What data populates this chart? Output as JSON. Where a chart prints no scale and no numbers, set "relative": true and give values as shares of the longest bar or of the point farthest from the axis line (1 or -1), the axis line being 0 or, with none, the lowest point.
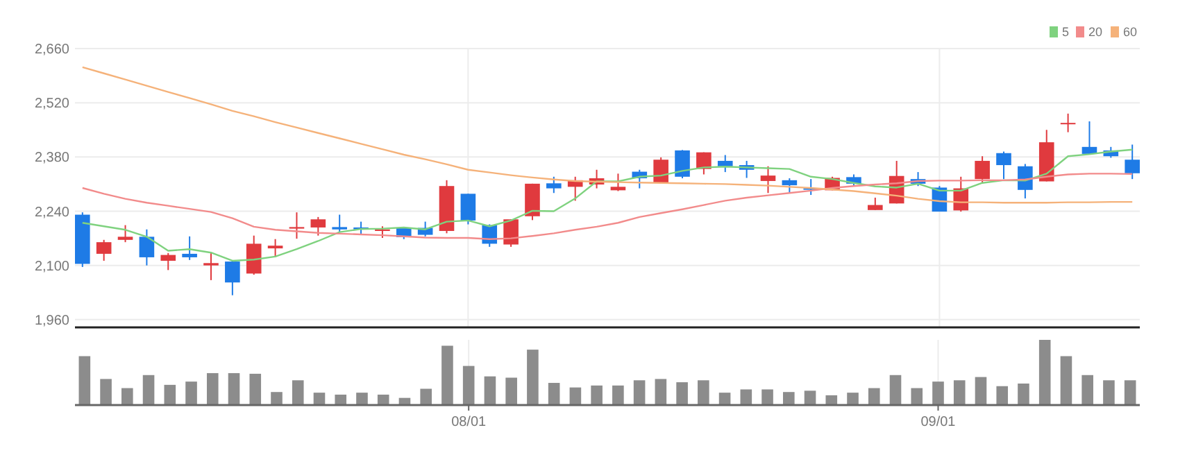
{
  "chart_data": [
    {
      "type": "candlestick",
      "categories": [
        null,
        null,
        null,
        null,
        null,
        null,
        null,
        null,
        null,
        null,
        null,
        null,
        null,
        null,
        null,
        null,
        null,
        null,
        null,
        null,
        null,
        null,
        null,
        null,
        null,
        null,
        null,
        null,
        null,
        null,
        null,
        null,
        null,
        null,
        null,
        null,
        null,
        null,
        null,
        null,
        null,
        null,
        null,
        null,
        null,
        null,
        null,
        null,
        null,
        null
      ],
      "ohlc": [
        [
          2231,
          2237,
          2096,
          2104
        ],
        [
          2130,
          2166,
          2112,
          2160
        ],
        [
          2166,
          2204,
          2160,
          2174
        ],
        [
          2174,
          2193,
          2100,
          2121
        ],
        [
          2112,
          2132,
          2088,
          2127
        ],
        [
          2130,
          2175,
          2114,
          2121
        ],
        [
          2100,
          2132,
          2062,
          2106
        ],
        [
          2110,
          2112,
          2023,
          2056
        ],
        [
          2079,
          2177,
          2076,
          2156
        ],
        [
          2144,
          2168,
          2121,
          2151
        ],
        [
          2195,
          2237,
          2169,
          2199
        ],
        [
          2198,
          2225,
          2177,
          2219
        ],
        [
          2199,
          2231,
          2187,
          2193
        ],
        [
          2198,
          2213,
          2180,
          2193
        ],
        [
          2189,
          2201,
          2171,
          2193
        ],
        [
          2197,
          2197,
          2168,
          2173
        ],
        [
          2197,
          2213,
          2175,
          2179
        ],
        [
          2189,
          2320,
          2183,
          2305
        ],
        [
          2285,
          2285,
          2206,
          2216
        ],
        [
          2204,
          2206,
          2148,
          2156
        ],
        [
          2154,
          2219,
          2148,
          2219
        ],
        [
          2227,
          2311,
          2217,
          2311
        ],
        [
          2312,
          2329,
          2287,
          2299
        ],
        [
          2303,
          2329,
          2267,
          2320
        ],
        [
          2309,
          2347,
          2299,
          2325
        ],
        [
          2294,
          2337,
          2292,
          2303
        ],
        [
          2342,
          2347,
          2299,
          2325
        ],
        [
          2314,
          2379,
          2314,
          2373
        ],
        [
          2397,
          2398,
          2325,
          2329
        ],
        [
          2349,
          2392,
          2335,
          2392
        ],
        [
          2370,
          2385,
          2341,
          2356
        ],
        [
          2359,
          2370,
          2326,
          2347
        ],
        [
          2318,
          2356,
          2287,
          2332
        ],
        [
          2320,
          2325,
          2289,
          2307
        ],
        [
          2299,
          2323,
          2282,
          2297
        ],
        [
          2294,
          2329,
          2294,
          2326
        ],
        [
          2328,
          2335,
          2304,
          2311
        ],
        [
          2243,
          2275,
          2243,
          2256
        ],
        [
          2260,
          2370,
          2260,
          2331
        ],
        [
          2323,
          2341,
          2305,
          2311
        ],
        [
          2301,
          2305,
          2239,
          2239
        ],
        [
          2242,
          2329,
          2239,
          2299
        ],
        [
          2323,
          2382,
          2311,
          2370
        ],
        [
          2390,
          2394,
          2323,
          2359
        ],
        [
          2356,
          2362,
          2273,
          2295
        ],
        [
          2317,
          2450,
          2317,
          2418
        ],
        [
          2466,
          2492,
          2444,
          2468
        ],
        [
          2406,
          2472,
          2386,
          2388
        ],
        [
          2397,
          2406,
          2378,
          2382
        ],
        [
          2373,
          2412,
          2323,
          2338
        ]
      ],
      "colors": [
        "#1e7be6",
        "#e03a3e",
        "#e03a3e",
        "#1e7be6",
        "#e03a3e",
        "#1e7be6",
        "#e03a3e",
        "#1e7be6",
        "#e03a3e",
        "#e03a3e",
        "#e03a3e",
        "#e03a3e",
        "#1e7be6",
        "#1e7be6",
        "#e03a3e",
        "#1e7be6",
        "#1e7be6",
        "#e03a3e",
        "#1e7be6",
        "#1e7be6",
        "#e03a3e",
        "#e03a3e",
        "#1e7be6",
        "#e03a3e",
        "#e03a3e",
        "#e03a3e",
        "#1e7be6",
        "#e03a3e",
        "#1e7be6",
        "#e03a3e",
        "#1e7be6",
        "#1e7be6",
        "#e03a3e",
        "#1e7be6",
        "#1e7be6",
        "#e03a3e",
        "#1e7be6",
        "#e03a3e",
        "#e03a3e",
        "#1e7be6",
        "#1e7be6",
        "#e03a3e",
        "#e03a3e",
        "#1e7be6",
        "#1e7be6",
        "#e03a3e",
        "#e03a3e",
        "#1e7be6",
        "#1e7be6",
        "#1e7be6"
      ],
      "series": [
        {
          "name": "5",
          "type": "line",
          "color": "#7fd27f",
          "values": [
            2210,
            2201,
            2192,
            2174,
            2138,
            2142,
            2133,
            2112,
            2115,
            2123,
            2142,
            2163,
            2186,
            2194,
            2195,
            2198,
            2193,
            2213,
            2216,
            2201,
            2216,
            2241,
            2240,
            2273,
            2317,
            2317,
            2329,
            2332,
            2344,
            2353,
            2355,
            2353,
            2351,
            2349,
            2329,
            2323,
            2313,
            2304,
            2301,
            2311,
            2293,
            2293,
            2313,
            2320,
            2319,
            2337,
            2382,
            2387,
            2394,
            2399
          ]
        },
        {
          "name": "20",
          "type": "line",
          "color": "#f28b8b",
          "values": [
            2300,
            2285,
            2272,
            2262,
            2254,
            2246,
            2238,
            2222,
            2200,
            2192,
            2188,
            2184,
            2182,
            2180,
            2178,
            2175,
            2172,
            2171,
            2171,
            2168,
            2170,
            2176,
            2183,
            2192,
            2200,
            2210,
            2225,
            2235,
            2245,
            2256,
            2267,
            2275,
            2281,
            2287,
            2293,
            2300,
            2305,
            2309,
            2312,
            2318,
            2319,
            2319,
            2320,
            2320,
            2322,
            2329,
            2335,
            2337,
            2337,
            2336
          ]
        },
        {
          "name": "60",
          "type": "line",
          "color": "#f5b27a",
          "values": [
            2612,
            2596,
            2580,
            2564,
            2548,
            2532,
            2516,
            2499,
            2485,
            2470,
            2456,
            2442,
            2428,
            2414,
            2400,
            2386,
            2374,
            2361,
            2347,
            2340,
            2333,
            2327,
            2322,
            2318,
            2316,
            2315,
            2314,
            2313,
            2312,
            2311,
            2310,
            2308,
            2306,
            2303,
            2300,
            2296,
            2292,
            2286,
            2280,
            2272,
            2266,
            2263,
            2263,
            2262,
            2262,
            2262,
            2263,
            2263,
            2264,
            2264
          ]
        }
      ],
      "ylim": [
        1940,
        2660
      ],
      "yticks": [
        {
          "value": 1960,
          "label": "1,960"
        },
        {
          "value": 2100,
          "label": "2,100"
        },
        {
          "value": 2240,
          "label": "2,240"
        },
        {
          "value": 2380,
          "label": "2,380"
        },
        {
          "value": 2520,
          "label": "2,520"
        },
        {
          "value": 2660,
          "label": "2,660"
        }
      ],
      "grid": true,
      "legend": "top right",
      "tick_labels": "y"
    },
    {
      "type": "bar",
      "relative": true,
      "categories": [
        null,
        null,
        null,
        null,
        null,
        null,
        null,
        null,
        null,
        null,
        null,
        null,
        null,
        null,
        null,
        null,
        null,
        null,
        "08/01",
        null,
        null,
        null,
        null,
        null,
        null,
        null,
        null,
        null,
        null,
        null,
        null,
        null,
        null,
        null,
        null,
        null,
        null,
        null,
        null,
        null,
        "09/01",
        null,
        null,
        null,
        null,
        null,
        null,
        null,
        null,
        null
      ],
      "values": [
        0.75,
        0.4,
        0.26,
        0.46,
        0.31,
        0.36,
        0.49,
        0.49,
        0.48,
        0.2,
        0.38,
        0.19,
        0.16,
        0.19,
        0.16,
        0.11,
        0.25,
        0.91,
        0.6,
        0.44,
        0.42,
        0.85,
        0.34,
        0.27,
        0.3,
        0.3,
        0.38,
        0.4,
        0.35,
        0.38,
        0.19,
        0.24,
        0.24,
        0.2,
        0.22,
        0.15,
        0.19,
        0.26,
        0.46,
        0.26,
        0.36,
        0.38,
        0.43,
        0.29,
        0.33,
        1,
        0.75,
        0.46,
        0.38,
        0.38
      ],
      "color": "#8c8c8c",
      "grid": "x",
      "tick_labels": "x"
    }
  ]
}
